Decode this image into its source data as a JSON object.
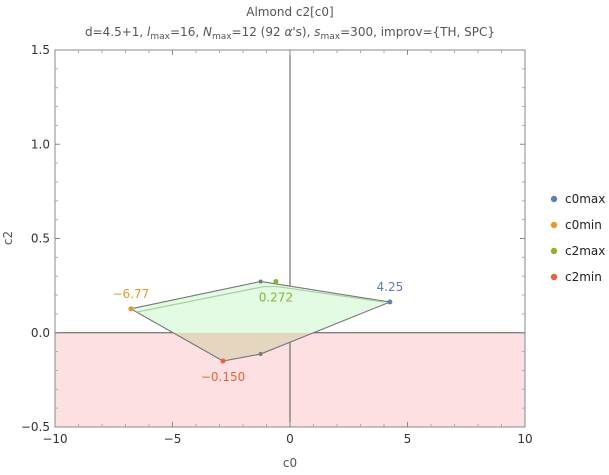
{
  "chart_data": {
    "type": "scatter",
    "title": "Almond c2[c0]",
    "subtitle": {
      "parts": [
        {
          "t": "d=4.5+1, "
        },
        {
          "t": "l",
          "i": true
        },
        {
          "t": "max",
          "sub": true
        },
        {
          "t": "=16, "
        },
        {
          "t": "N",
          "i": true
        },
        {
          "t": "max",
          "sub": true
        },
        {
          "t": "=12 (92 "
        },
        {
          "t": "α",
          "i": true
        },
        {
          "t": "'s), "
        },
        {
          "t": "s",
          "i": true
        },
        {
          "t": "max",
          "sub": true
        },
        {
          "t": "=300, improv={TH, SPC}"
        }
      ]
    },
    "xlabel": "c0",
    "ylabel": "c2",
    "xlim": [
      -10,
      10
    ],
    "ylim": [
      -0.5,
      1.5
    ],
    "xticks": [
      -10,
      -5,
      0,
      5,
      10
    ],
    "yticks": [
      -0.5,
      0.0,
      0.5,
      1.0,
      1.5
    ],
    "xtick_labels": [
      "−10",
      "−5",
      "0",
      "5",
      "10"
    ],
    "ytick_labels": [
      "−0.5",
      "0.0",
      "0.5",
      "1.0",
      "1.5"
    ],
    "negative_region": {
      "ymax": 0,
      "color": "#fde0e1"
    },
    "outer_polygon": {
      "points": [
        [
          -6.77,
          0.127
        ],
        [
          -1.25,
          0.272
        ],
        [
          4.25,
          0.163
        ],
        [
          -1.25,
          -0.113
        ],
        [
          -2.85,
          -0.15
        ]
      ],
      "fill": "#e3fbe3",
      "stroke": "#777777"
    },
    "inner_polygon": {
      "points": [
        [
          -6.5,
          0.11
        ],
        [
          -1.1,
          0.245
        ],
        [
          -0.55,
          0.245
        ],
        [
          4.0,
          0.163
        ]
      ],
      "stroke": "#a8d0a0"
    },
    "markers": [
      {
        "x": -1.25,
        "y": 0.272,
        "color": "#777777"
      },
      {
        "x": -1.25,
        "y": -0.113,
        "color": "#777777"
      }
    ],
    "series": [
      {
        "name": "c0max",
        "color": "#5e81b5",
        "point": [
          4.25,
          0.163
        ],
        "label": "4.25",
        "label_pos": "above"
      },
      {
        "name": "c0min",
        "color": "#e19c24",
        "point": [
          -6.77,
          0.127
        ],
        "label": "−6.77",
        "label_pos": "above"
      },
      {
        "name": "c2max",
        "color": "#8fb032",
        "point": [
          -0.6,
          0.272
        ],
        "label": "0.272",
        "label_pos": "below"
      },
      {
        "name": "c2min",
        "color": "#eb6235",
        "point": [
          -2.85,
          -0.15
        ],
        "label": "−0.150",
        "label_pos": "below"
      }
    ],
    "legend_position": "right"
  }
}
